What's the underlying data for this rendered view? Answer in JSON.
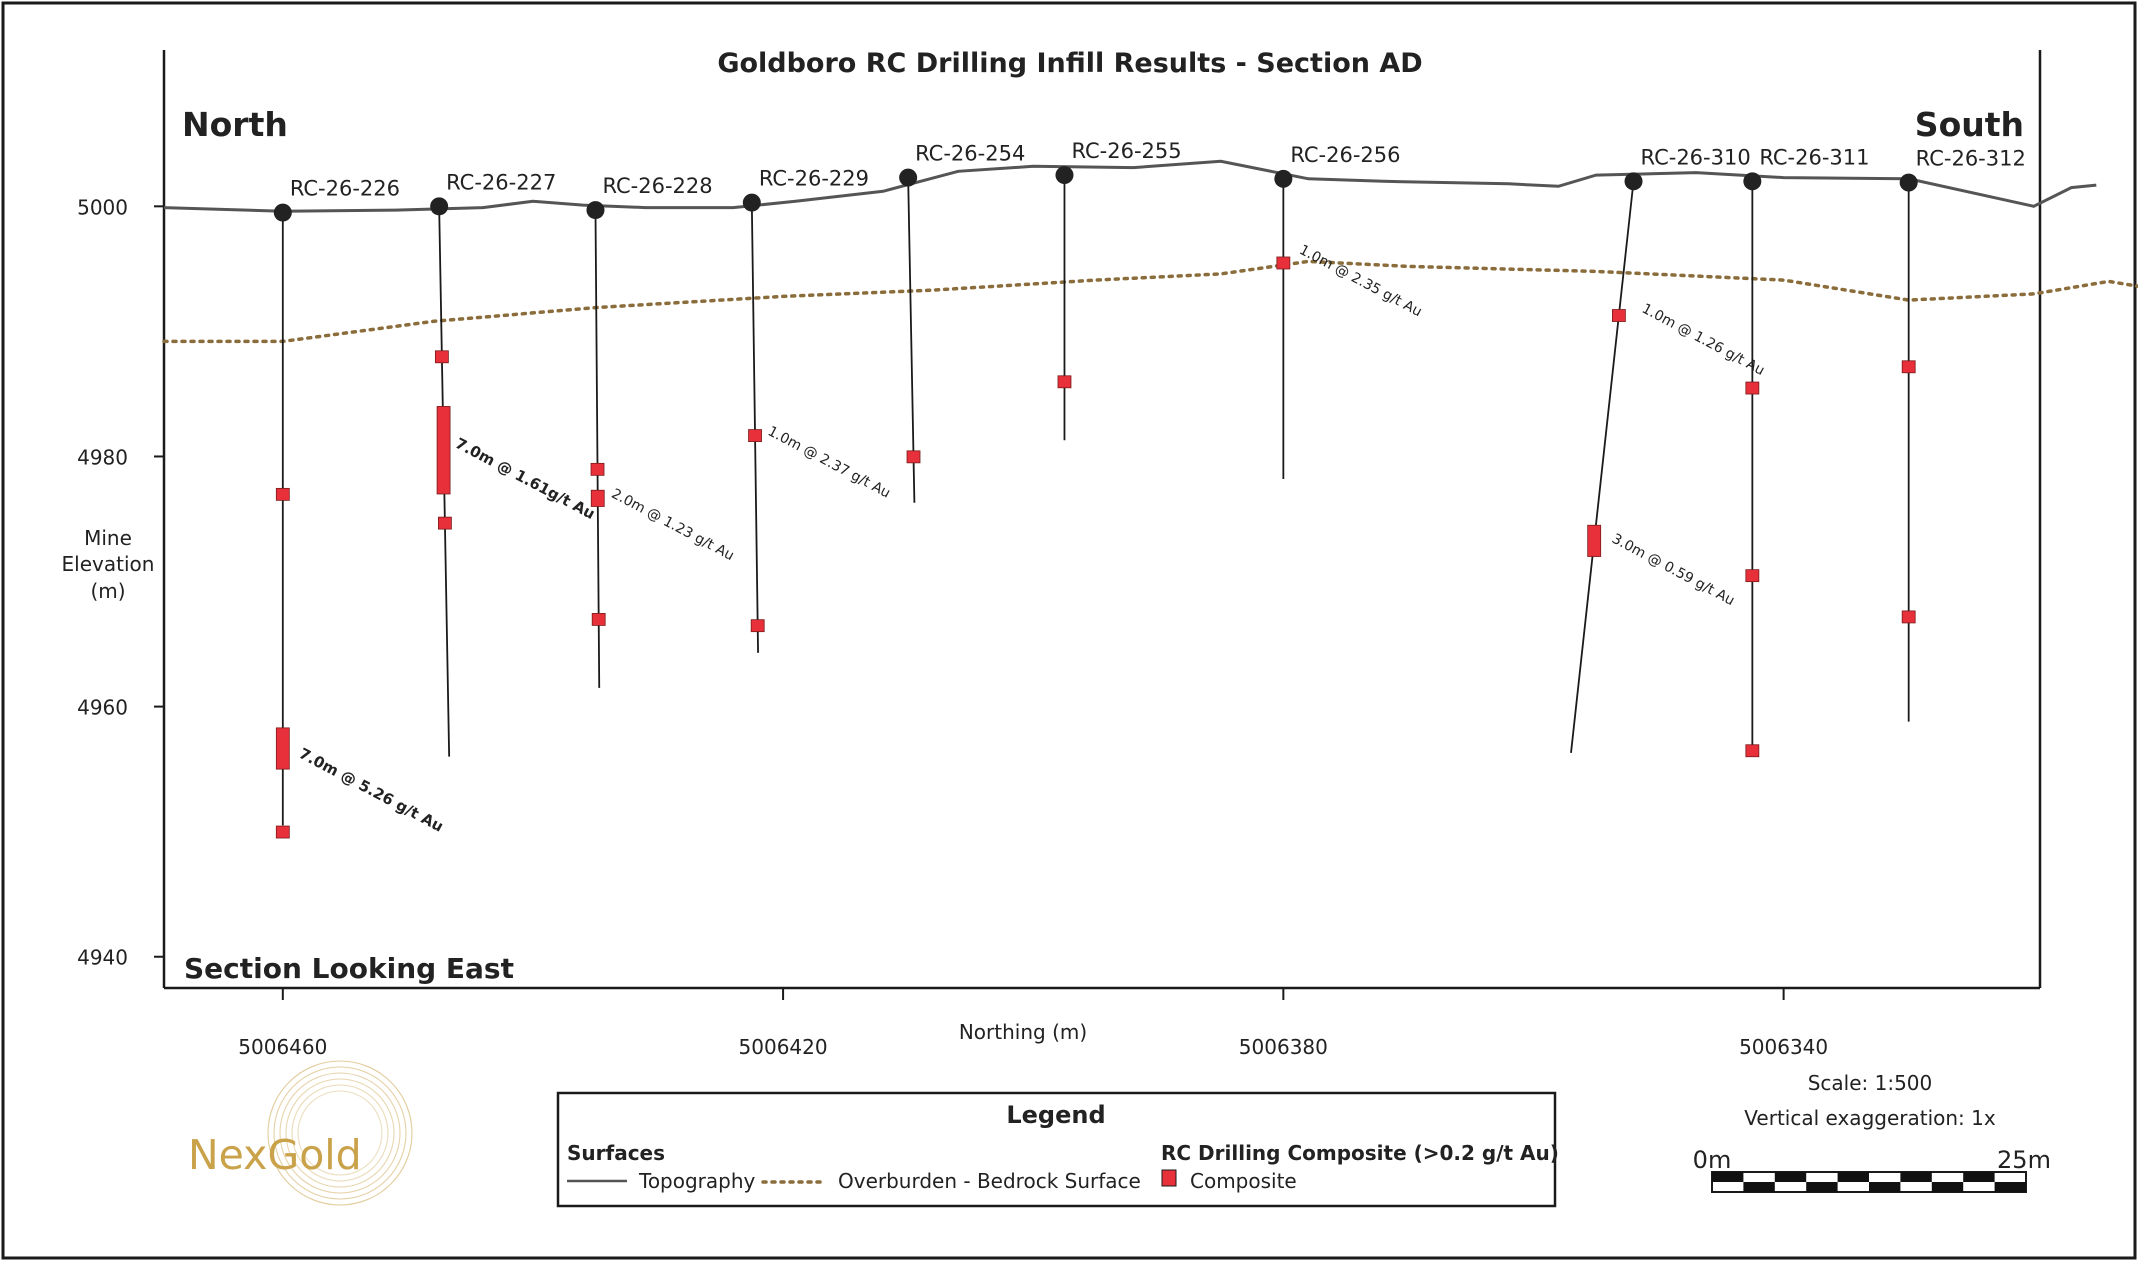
{
  "title": "Goldboro RC Drilling Infill Results - Section AD",
  "direction_left": "North",
  "direction_right": "South",
  "view_label": "Section Looking East",
  "y_axis": {
    "label_lines": [
      "Mine",
      "Elevation",
      "(m)"
    ],
    "ticks": [
      5000,
      4980,
      4960,
      4940
    ],
    "range": [
      4937.5,
      5012.5
    ]
  },
  "x_axis": {
    "label": "Northing (m)",
    "ticks": [
      5006460,
      5006420,
      5006380,
      5006340
    ],
    "range_desc": [
      5006469.5,
      5006319.5
    ]
  },
  "topography": [
    [
      5006469.5,
      4999.9
    ],
    [
      5006460,
      4999.6
    ],
    [
      5006451,
      4999.7
    ],
    [
      5006444,
      4999.9
    ],
    [
      5006440,
      5000.4
    ],
    [
      5006436,
      5000.1
    ],
    [
      5006431,
      4999.9
    ],
    [
      5006424,
      4999.9
    ],
    [
      5006419,
      5000.4
    ],
    [
      5006412,
      5001.2
    ],
    [
      5006406,
      5002.8
    ],
    [
      5006400,
      5003.2
    ],
    [
      5006392,
      5003.1
    ],
    [
      5006385,
      5003.6
    ],
    [
      5006378,
      5002.2
    ],
    [
      5006372,
      5002.0
    ],
    [
      5006362,
      5001.8
    ],
    [
      5006358,
      5001.6
    ],
    [
      5006355,
      5002.5
    ],
    [
      5006347,
      5002.7
    ],
    [
      5006340,
      5002.3
    ],
    [
      5006330,
      5002.2
    ],
    [
      5006320,
      5000.0
    ],
    [
      5006317,
      5001.5
    ],
    [
      5006315,
      5001.7
    ]
  ],
  "overburden": [
    [
      5006469.5,
      4989.2
    ],
    [
      5006460,
      4989.2
    ],
    [
      5006448,
      4990.8
    ],
    [
      5006435,
      4991.9
    ],
    [
      5006420,
      4992.8
    ],
    [
      5006408,
      4993.3
    ],
    [
      5006395,
      4994.1
    ],
    [
      5006385,
      4994.6
    ],
    [
      5006378,
      4995.6
    ],
    [
      5006370,
      4995.2
    ],
    [
      5006355,
      4994.8
    ],
    [
      5006340,
      4994.1
    ],
    [
      5006330,
      4992.5
    ],
    [
      5006320,
      4993.0
    ],
    [
      5006314,
      4994.0
    ],
    [
      5006311,
      4993.5
    ]
  ],
  "holes": [
    {
      "id": "RC-26-226",
      "collar": [
        5006460,
        4999.5
      ],
      "toe": [
        5006460,
        4950.5
      ],
      "composites": [
        [
          4977.0
        ],
        [
          4955.0,
          4958.3
        ],
        [
          4950.0
        ]
      ]
    },
    {
      "id": "RC-26-227",
      "collar": [
        5006447.5,
        5000.0
      ],
      "toe": [
        5006446.7,
        4956.0
      ],
      "composites": [
        [
          4988.0
        ],
        [
          4977.0,
          4984.0
        ],
        [
          4974.7
        ]
      ]
    },
    {
      "id": "RC-26-228",
      "collar": [
        5006435,
        4999.7
      ],
      "toe": [
        5006434.7,
        4961.5
      ],
      "composites": [
        [
          4979.0
        ],
        [
          4976.0,
          4977.3
        ],
        [
          4967.0
        ]
      ]
    },
    {
      "id": "RC-26-229",
      "collar": [
        5006422.5,
        5000.3
      ],
      "toe": [
        5006422.0,
        4964.3
      ],
      "composites": [
        [
          4981.7
        ],
        [
          4966.5
        ]
      ]
    },
    {
      "id": "RC-26-254",
      "collar": [
        5006410,
        5002.3
      ],
      "toe": [
        5006409.5,
        4976.3
      ],
      "composites": [
        [
          4980.0
        ]
      ]
    },
    {
      "id": "RC-26-255",
      "collar": [
        5006397.5,
        5002.5
      ],
      "toe": [
        5006397.5,
        4981.3
      ],
      "composites": [
        [
          4986.0
        ]
      ]
    },
    {
      "id": "RC-26-256",
      "collar": [
        5006380,
        5002.2
      ],
      "toe": [
        5006380,
        4978.2
      ],
      "composites": [
        [
          4995.5
        ]
      ]
    },
    {
      "id": "RC-26-310",
      "collar": [
        5006352.0,
        5002.0
      ],
      "toe": [
        5006357.0,
        4956.3
      ],
      "composites": [
        [
          4991.3
        ],
        [
          4972.0,
          4974.5
        ]
      ]
    },
    {
      "id": "RC-26-311",
      "collar": [
        5006342.5,
        5002.0
      ],
      "toe": [
        5006342.5,
        4956.0
      ],
      "composites": [
        [
          4985.5
        ],
        [
          4970.5
        ],
        [
          4956.5
        ]
      ]
    },
    {
      "id": "RC-26-312",
      "collar": [
        5006330,
        5001.9
      ],
      "toe": [
        5006330,
        4958.8
      ],
      "composites": [
        [
          4987.2
        ],
        [
          4967.2
        ]
      ]
    }
  ],
  "assays": [
    {
      "text": "7.0m @ 5.26 g/t Au",
      "at": [
        5006458.8,
        4956.0
      ],
      "bold": true
    },
    {
      "text": "7.0m @ 1.61g/t Au",
      "at": [
        5006446.3,
        4980.8
      ],
      "bold": true
    },
    {
      "text": "2.0m @ 1.23 g/t Au",
      "at": [
        5006433.8,
        4976.8
      ],
      "bold": false
    },
    {
      "text": "1.0m @ 2.37 g/t Au",
      "at": [
        5006421.3,
        4981.8
      ],
      "bold": false
    },
    {
      "text": "1.0m @ 2.35 g/t Au",
      "at": [
        5006378.8,
        4996.3
      ],
      "bold": false
    },
    {
      "text": "1.0m @ 1.26 g/t Au",
      "at": [
        5006351.4,
        4991.6
      ],
      "bold": false
    },
    {
      "text": "3.0m @ 0.59 g/t Au",
      "at": [
        5006353.8,
        4973.2
      ],
      "bold": false
    }
  ],
  "logo_text": "NexGold",
  "scale": {
    "ratio_label": "Scale: 1:500",
    "exaggeration_label": "Vertical exaggeration: 1x",
    "start_label": "0m",
    "end_label": "25m"
  },
  "legend": {
    "title": "Legend",
    "surfaces_heading": "Surfaces",
    "topography_label": "Topography",
    "overburden_label": "Overburden - Bedrock Surface",
    "composite_heading": "RC Drilling Composite (>0.2 g/t Au)",
    "composite_label": "Composite"
  },
  "colors": {
    "topography": "#555555",
    "overburden": "#8a6d3b",
    "composite": "#e8303a",
    "collar": "#222222",
    "logo_gold": "#c9a24a"
  }
}
